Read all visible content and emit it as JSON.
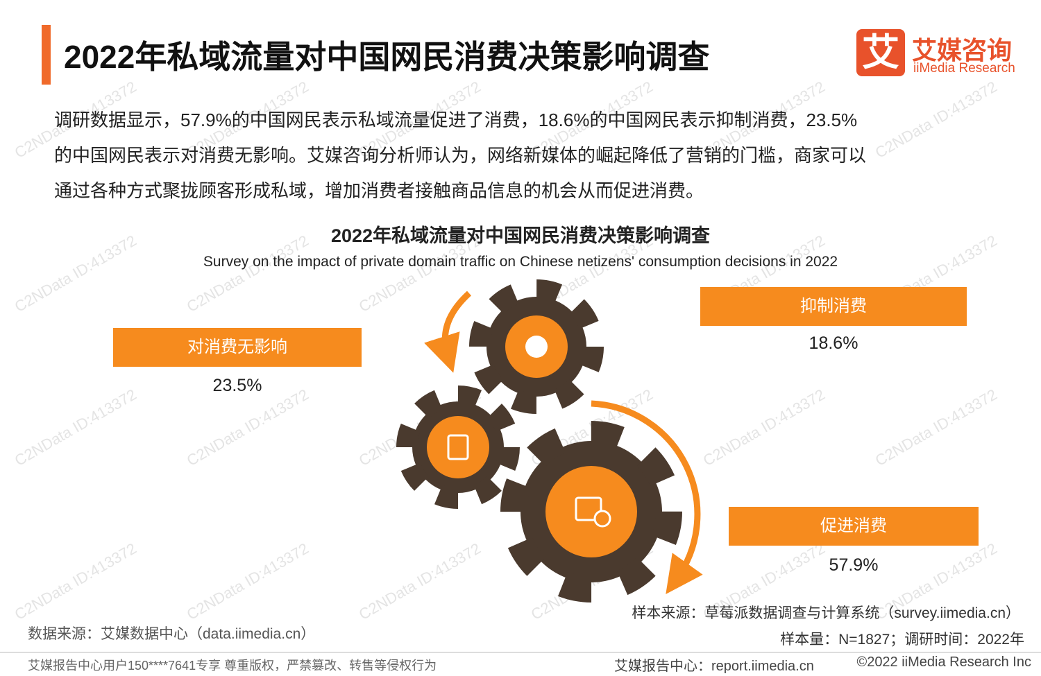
{
  "header": {
    "title": "2022年私域流量对中国网民消费决策影响调查",
    "logo_mark": "艾",
    "logo_cn": "艾媒咨询",
    "logo_en": "iiMedia Research"
  },
  "intro": {
    "lines": [
      "调研数据显示，57.9%的中国网民表示私域流量促进了消费，18.6%的中国网民表示抑制消费，23.5%",
      "的中国网民表示对消费无影响。艾媒咨询分析师认为，网络新媒体的崛起降低了营销的门槛，商家可以",
      "通过各种方式聚拢顾客形成私域，增加消费者接触商品信息的机会从而促进消费。"
    ]
  },
  "figure": {
    "title": "2022年私域流量对中国网民消费决策影响调查",
    "subtitle": "Survey on the impact of private domain traffic on Chinese netizens' consumption decisions in 2022",
    "items": [
      {
        "label": "对消费无影响",
        "value": "23.5%"
      },
      {
        "label": "抑制消费",
        "value": "18.6%"
      },
      {
        "label": "促进消费",
        "value": "57.9%"
      }
    ]
  },
  "watermark": "C2NData ID:413372",
  "footer": {
    "sample_source": "样本来源：草莓派数据调查与计算系统（survey.iimedia.cn）",
    "sample_size": "样本量：N=1827；调研时间：2022年",
    "data_source": "数据来源：艾媒数据中心（data.iimedia.cn）",
    "notice": "艾媒报告中心用户150****7641专享 尊重版权，严禁篡改、转售等侵权行为",
    "site": "艾媒报告中心：report.iimedia.cn",
    "copyright": "©2022  iiMedia Research  Inc"
  }
}
